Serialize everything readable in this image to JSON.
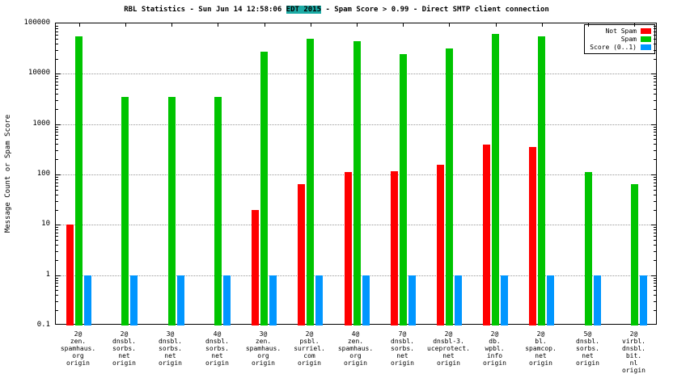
{
  "title": {
    "pre": "RBL Statistics - Sun Jun 14 12:58:06 ",
    "highlight": "EDT 2015",
    "post": " - Spam Score > 0.99 - Direct SMTP client connection"
  },
  "chart_data": {
    "type": "bar",
    "y_scale": "log",
    "ylim": [
      0.1,
      100000
    ],
    "ylabel": "Message Count or Spam Score",
    "y_ticks": [
      "0.1",
      "1",
      "10",
      "100",
      "1000",
      "10000",
      "100000"
    ],
    "grid": "horizontal-dotted",
    "legend_position": "top-right",
    "categories": [
      [
        "2@",
        "zen.",
        "spamhaus.",
        "org",
        "origin"
      ],
      [
        "2@",
        "dnsbl.",
        "sorbs.",
        "net",
        "origin"
      ],
      [
        "3@",
        "dnsbl.",
        "sorbs.",
        "net",
        "origin"
      ],
      [
        "4@",
        "dnsbl.",
        "sorbs.",
        "net",
        "origin"
      ],
      [
        "3@",
        "zen.",
        "spamhaus.",
        "org",
        "origin"
      ],
      [
        "2@",
        "psbl.",
        "surriel.",
        "com",
        "origin"
      ],
      [
        "4@",
        "zen.",
        "spamhaus.",
        "org",
        "origin"
      ],
      [
        "7@",
        "dnsbl.",
        "sorbs.",
        "net",
        "origin"
      ],
      [
        "2@",
        "dnsbl-3.",
        "uceprotect.",
        "net",
        "origin"
      ],
      [
        "2@",
        "db.",
        "wpbl.",
        "info",
        "origin"
      ],
      [
        "2@",
        "bl.",
        "spamcop.",
        "net",
        "origin"
      ],
      [
        "5@",
        "dnsbl.",
        "sorbs.",
        "net",
        "origin"
      ],
      [
        "2@",
        "virbl.",
        "dnsbl.",
        "bit.",
        "nl",
        "origin"
      ]
    ],
    "series": [
      {
        "name": "Not Spam",
        "color": "#ff0000",
        "values": [
          10,
          null,
          null,
          null,
          20,
          65,
          110,
          115,
          155,
          400,
          350,
          null,
          null
        ]
      },
      {
        "name": "Spam",
        "color": "#00c400",
        "values": [
          55000,
          3500,
          3500,
          3500,
          27000,
          50000,
          45000,
          25000,
          32000,
          62000,
          55000,
          110,
          65
        ]
      },
      {
        "name": "Score (0..1)",
        "color": "#0096ff",
        "values": [
          1,
          1,
          1,
          1,
          1,
          1,
          1,
          1,
          1,
          1,
          1,
          1,
          1
        ]
      }
    ]
  }
}
